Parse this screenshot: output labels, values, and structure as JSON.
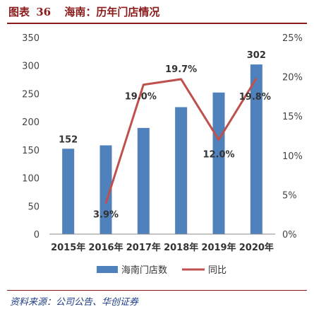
{
  "header": {
    "figure_label": "图表",
    "figure_number": "36",
    "title": "海南：历年门店情况"
  },
  "source": "资料来源：公司公告、华创证券",
  "colors": {
    "bar": "#4f81bd",
    "line": "#c0504d",
    "header": "#8b1a1a",
    "source": "#1f3f87"
  },
  "chart_data": {
    "type": "bar",
    "categories": [
      "2015年",
      "2016年",
      "2017年",
      "2018年",
      "2019年",
      "2020年"
    ],
    "series": [
      {
        "name": "海南门店数",
        "type": "bar",
        "axis": "left",
        "values": [
          152,
          158,
          189,
          226,
          252,
          302
        ],
        "data_labels": [
          "152",
          null,
          null,
          null,
          null,
          "302"
        ]
      },
      {
        "name": "同比",
        "type": "line",
        "axis": "right",
        "values": [
          null,
          3.9,
          19.0,
          19.7,
          12.0,
          19.8
        ],
        "data_labels": [
          null,
          "3.9%",
          "19.0%",
          "19.7%",
          "12.0%",
          "19.8%"
        ]
      }
    ],
    "y_left": {
      "ylim": [
        0,
        350
      ],
      "ticks": [
        "0",
        "50",
        "100",
        "150",
        "200",
        "250",
        "300",
        "350"
      ]
    },
    "y_right": {
      "ylim": [
        0,
        25
      ],
      "ticks": [
        "0%",
        "5%",
        "10%",
        "15%",
        "20%",
        "25%"
      ]
    },
    "grid": false,
    "legend": "bottom"
  }
}
